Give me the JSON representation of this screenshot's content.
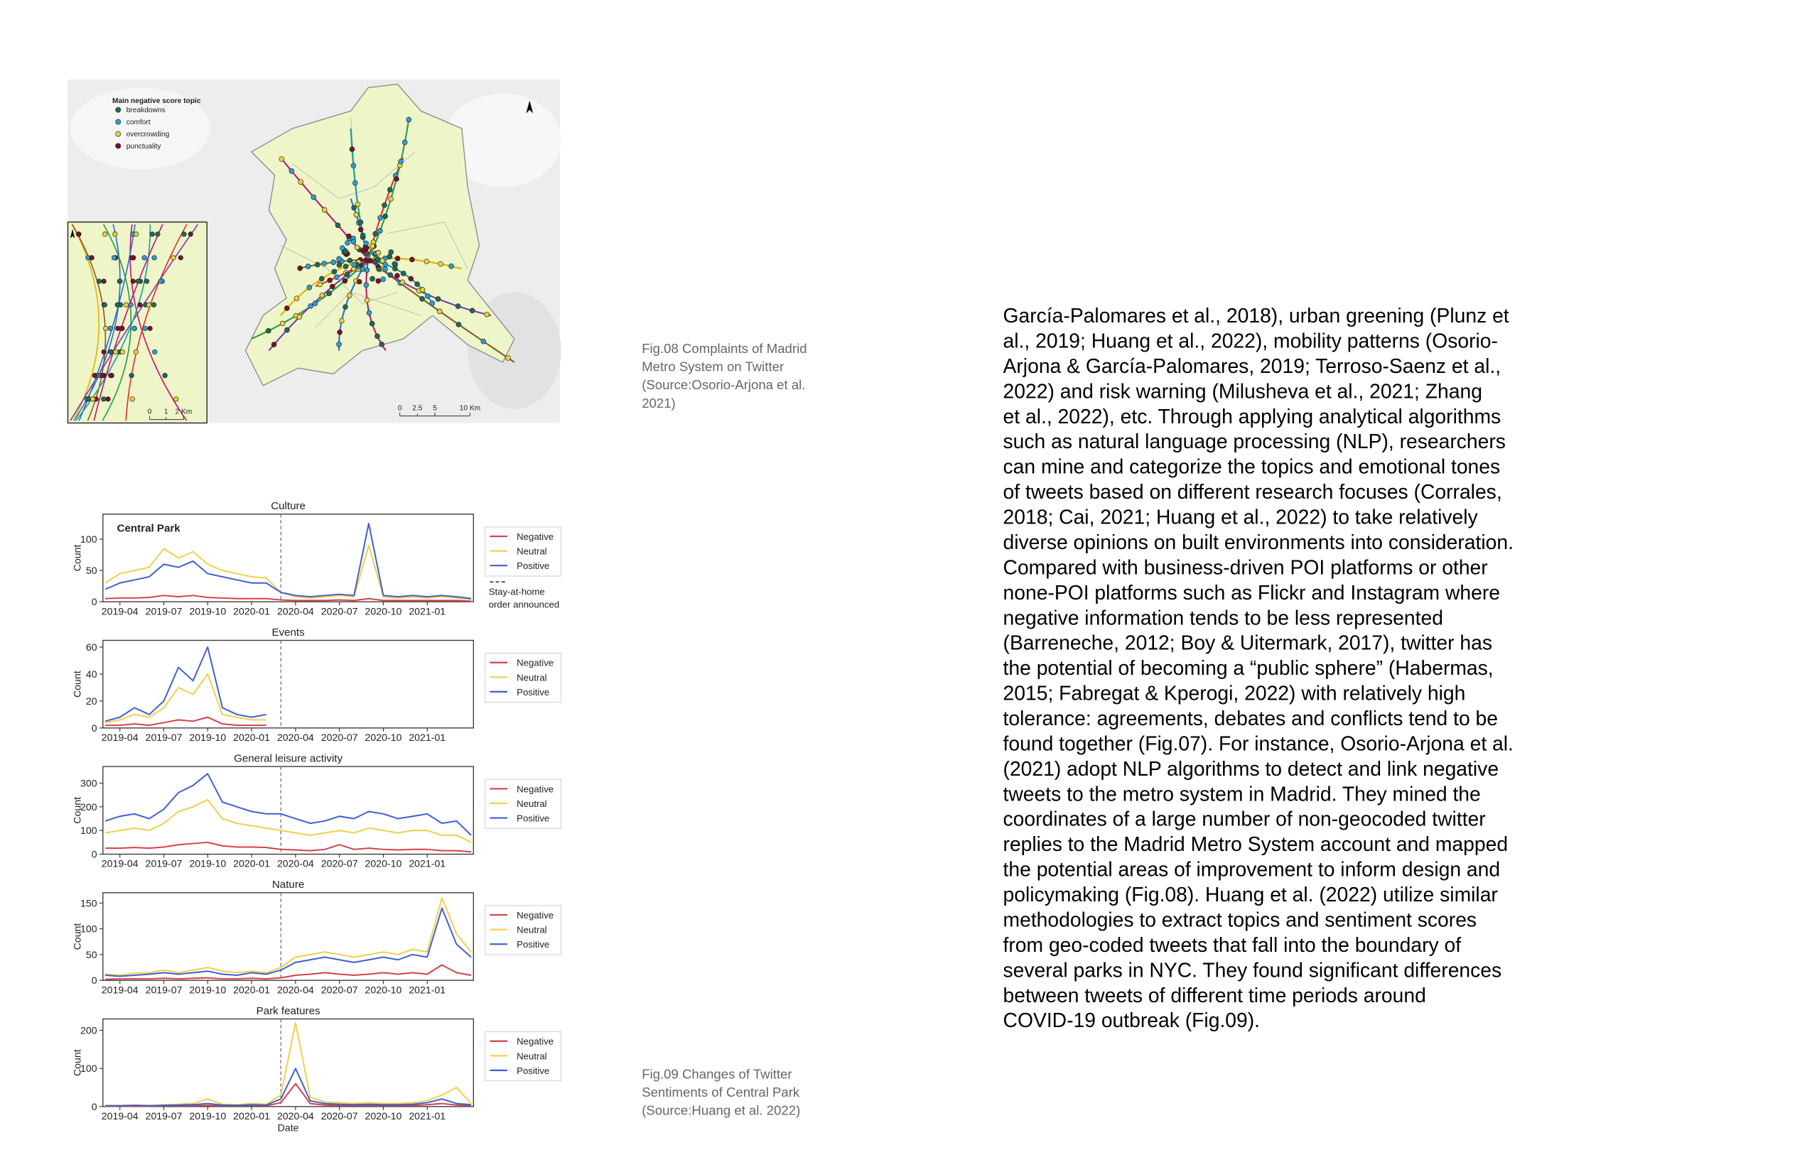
{
  "fig08": {
    "map": {
      "legend_title": "Main negative score topic",
      "legend": [
        "breakdowns",
        "comfort",
        "overcrowding",
        "punctuality"
      ],
      "legend_colors": [
        "#1d6b57",
        "#2b9fd6",
        "#e9d23a",
        "#7d1122"
      ],
      "scale_main": [
        "0",
        "2.5",
        "5",
        "10 Km"
      ],
      "scale_inset": [
        "0",
        "1",
        "2 Km"
      ]
    },
    "caption": [
      "Fig.08 Complaints of Madrid",
      "Metro System on Twitter",
      "(Source:Osorio-Arjona et al.",
      "2021)"
    ]
  },
  "chart_data": [
    {
      "type": "line",
      "title": "Culture",
      "ylabel": "Count",
      "note": "Central Park",
      "x": [
        "2019-03",
        "2019-04",
        "2019-05",
        "2019-06",
        "2019-07",
        "2019-08",
        "2019-09",
        "2019-10",
        "2019-11",
        "2019-12",
        "2020-01",
        "2020-02",
        "2020-03",
        "2020-04",
        "2020-05",
        "2020-06",
        "2020-07",
        "2020-08",
        "2020-09",
        "2020-10",
        "2020-11",
        "2020-12",
        "2021-01",
        "2021-02",
        "2021-03",
        "2021-04"
      ],
      "xticks": [
        "2019-04",
        "2019-07",
        "2019-10",
        "2020-01",
        "2020-04",
        "2020-07",
        "2020-10",
        "2021-01"
      ],
      "ylim": [
        0,
        140
      ],
      "yticks": [
        0,
        50,
        100
      ],
      "vline": "2020-03",
      "vline_label": [
        "Stay-at-home",
        "order announced"
      ],
      "series": [
        {
          "name": "Negative",
          "color": "#d6404a",
          "values": [
            5,
            6,
            6,
            7,
            10,
            8,
            10,
            7,
            6,
            5,
            5,
            5,
            3,
            2,
            2,
            2,
            3,
            2,
            5,
            2,
            2,
            2,
            2,
            2,
            2,
            1
          ]
        },
        {
          "name": "Neutral",
          "color": "#f2cf4a",
          "values": [
            30,
            45,
            50,
            55,
            85,
            70,
            80,
            60,
            50,
            45,
            40,
            38,
            15,
            8,
            6,
            8,
            10,
            8,
            90,
            8,
            6,
            8,
            6,
            8,
            6,
            4
          ]
        },
        {
          "name": "Positive",
          "color": "#3d5fd0",
          "values": [
            20,
            30,
            35,
            40,
            60,
            55,
            65,
            45,
            40,
            35,
            30,
            30,
            15,
            10,
            8,
            10,
            12,
            10,
            125,
            10,
            8,
            10,
            8,
            10,
            8,
            5
          ]
        }
      ]
    },
    {
      "type": "line",
      "title": "Events",
      "ylabel": "Count",
      "x": [
        "2019-03",
        "2019-04",
        "2019-05",
        "2019-06",
        "2019-07",
        "2019-08",
        "2019-09",
        "2019-10",
        "2019-11",
        "2019-12",
        "2020-01",
        "2020-02",
        "2020-03",
        "2020-04",
        "2020-05",
        "2020-06",
        "2020-07",
        "2020-08",
        "2020-09",
        "2020-10",
        "2020-11",
        "2020-12",
        "2021-01",
        "2021-02",
        "2021-03",
        "2021-04"
      ],
      "xticks": [
        "2019-04",
        "2019-07",
        "2019-10",
        "2020-01",
        "2020-04",
        "2020-07",
        "2020-10",
        "2021-01"
      ],
      "ylim": [
        0,
        65
      ],
      "yticks": [
        0,
        20,
        40,
        60
      ],
      "vline": "2020-03",
      "series": [
        {
          "name": "Negative",
          "color": "#d6404a",
          "values": [
            2,
            2,
            3,
            2,
            4,
            6,
            5,
            8,
            3,
            2,
            2,
            2,
            null,
            null,
            null,
            null,
            null,
            null,
            null,
            null,
            null,
            null,
            null,
            null,
            null,
            null
          ]
        },
        {
          "name": "Neutral",
          "color": "#f2cf4a",
          "values": [
            4,
            6,
            10,
            8,
            15,
            30,
            25,
            40,
            10,
            8,
            6,
            6,
            null,
            null,
            null,
            null,
            null,
            null,
            null,
            null,
            null,
            null,
            null,
            null,
            null,
            null
          ]
        },
        {
          "name": "Positive",
          "color": "#3d5fd0",
          "values": [
            5,
            8,
            15,
            10,
            20,
            45,
            35,
            60,
            15,
            10,
            8,
            10,
            null,
            null,
            null,
            null,
            null,
            null,
            null,
            null,
            null,
            null,
            null,
            null,
            null,
            null
          ]
        }
      ]
    },
    {
      "type": "line",
      "title": "General leisure activity",
      "ylabel": "Count",
      "x": [
        "2019-03",
        "2019-04",
        "2019-05",
        "2019-06",
        "2019-07",
        "2019-08",
        "2019-09",
        "2019-10",
        "2019-11",
        "2019-12",
        "2020-01",
        "2020-02",
        "2020-03",
        "2020-04",
        "2020-05",
        "2020-06",
        "2020-07",
        "2020-08",
        "2020-09",
        "2020-10",
        "2020-11",
        "2020-12",
        "2021-01",
        "2021-02",
        "2021-03",
        "2021-04"
      ],
      "xticks": [
        "2019-04",
        "2019-07",
        "2019-10",
        "2020-01",
        "2020-04",
        "2020-07",
        "2020-10",
        "2021-01"
      ],
      "ylim": [
        0,
        370
      ],
      "yticks": [
        0,
        100,
        200,
        300
      ],
      "vline": "2020-03",
      "series": [
        {
          "name": "Negative",
          "color": "#d6404a",
          "values": [
            25,
            25,
            28,
            25,
            30,
            40,
            45,
            50,
            35,
            30,
            30,
            28,
            20,
            18,
            15,
            20,
            40,
            20,
            25,
            20,
            18,
            20,
            20,
            15,
            15,
            10
          ]
        },
        {
          "name": "Neutral",
          "color": "#f2cf4a",
          "values": [
            90,
            100,
            110,
            100,
            130,
            180,
            200,
            230,
            150,
            130,
            120,
            110,
            100,
            90,
            80,
            90,
            100,
            90,
            110,
            100,
            90,
            100,
            100,
            80,
            80,
            50
          ]
        },
        {
          "name": "Positive",
          "color": "#3d5fd0",
          "values": [
            140,
            160,
            170,
            150,
            190,
            260,
            290,
            340,
            220,
            200,
            180,
            170,
            170,
            150,
            130,
            140,
            160,
            150,
            180,
            170,
            150,
            160,
            170,
            130,
            140,
            80
          ]
        }
      ]
    },
    {
      "type": "line",
      "title": "Nature",
      "ylabel": "Count",
      "x": [
        "2019-03",
        "2019-04",
        "2019-05",
        "2019-06",
        "2019-07",
        "2019-08",
        "2019-09",
        "2019-10",
        "2019-11",
        "2019-12",
        "2020-01",
        "2020-02",
        "2020-03",
        "2020-04",
        "2020-05",
        "2020-06",
        "2020-07",
        "2020-08",
        "2020-09",
        "2020-10",
        "2020-11",
        "2020-12",
        "2021-01",
        "2021-02",
        "2021-03",
        "2021-04"
      ],
      "xticks": [
        "2019-04",
        "2019-07",
        "2019-10",
        "2020-01",
        "2020-04",
        "2020-07",
        "2020-10",
        "2021-01"
      ],
      "ylim": [
        0,
        170
      ],
      "yticks": [
        0,
        50,
        100,
        150
      ],
      "vline": "2020-03",
      "series": [
        {
          "name": "Negative",
          "color": "#d6404a",
          "values": [
            2,
            3,
            3,
            3,
            4,
            3,
            4,
            5,
            3,
            3,
            4,
            3,
            5,
            10,
            12,
            15,
            12,
            10,
            12,
            15,
            12,
            15,
            12,
            30,
            15,
            10
          ]
        },
        {
          "name": "Neutral",
          "color": "#f2cf4a",
          "values": [
            12,
            10,
            14,
            15,
            20,
            15,
            20,
            25,
            18,
            15,
            18,
            15,
            25,
            45,
            50,
            55,
            50,
            45,
            50,
            55,
            50,
            60,
            55,
            160,
            90,
            55
          ]
        },
        {
          "name": "Positive",
          "color": "#3d5fd0",
          "values": [
            10,
            8,
            10,
            12,
            15,
            12,
            15,
            18,
            12,
            10,
            15,
            12,
            20,
            35,
            40,
            45,
            40,
            35,
            40,
            45,
            40,
            50,
            45,
            140,
            70,
            45
          ]
        }
      ]
    },
    {
      "type": "line",
      "title": "Park features",
      "ylabel": "Count",
      "xlabel": "Date",
      "x": [
        "2019-03",
        "2019-04",
        "2019-05",
        "2019-06",
        "2019-07",
        "2019-08",
        "2019-09",
        "2019-10",
        "2019-11",
        "2019-12",
        "2020-01",
        "2020-02",
        "2020-03",
        "2020-04",
        "2020-05",
        "2020-06",
        "2020-07",
        "2020-08",
        "2020-09",
        "2020-10",
        "2020-11",
        "2020-12",
        "2021-01",
        "2021-02",
        "2021-03",
        "2021-04"
      ],
      "xticks": [
        "2019-04",
        "2019-07",
        "2019-10",
        "2020-01",
        "2020-04",
        "2020-07",
        "2020-10",
        "2021-01"
      ],
      "ylim": [
        0,
        230
      ],
      "yticks": [
        0,
        100,
        200
      ],
      "vline": "2020-03",
      "series": [
        {
          "name": "Negative",
          "color": "#d6404a",
          "values": [
            1,
            1,
            1,
            1,
            2,
            2,
            2,
            3,
            2,
            2,
            3,
            2,
            10,
            60,
            8,
            4,
            3,
            3,
            3,
            3,
            3,
            3,
            5,
            8,
            4,
            3
          ]
        },
        {
          "name": "Neutral",
          "color": "#f2cf4a",
          "values": [
            3,
            3,
            4,
            3,
            5,
            6,
            8,
            20,
            6,
            5,
            8,
            6,
            30,
            220,
            25,
            12,
            10,
            8,
            10,
            8,
            8,
            10,
            15,
            30,
            50,
            8
          ]
        },
        {
          "name": "Positive",
          "color": "#3d5fd0",
          "values": [
            2,
            2,
            3,
            2,
            3,
            4,
            5,
            8,
            4,
            3,
            5,
            4,
            20,
            100,
            15,
            8,
            6,
            5,
            6,
            5,
            5,
            6,
            10,
            20,
            8,
            5
          ]
        }
      ]
    }
  ],
  "fig09": {
    "caption": [
      "Fig.09 Changes of Twitter",
      "Sentiments of Central Park",
      "(Source:Huang et al. 2022)"
    ]
  },
  "body": {
    "lines": [
      "García-Palomares et al., 2018), urban greening (Plunz et",
      "al., 2019; Huang et al., 2022), mobility patterns (Osorio-",
      "Arjona & García-Palomares, 2019; Terroso-Saenz et al.,",
      "2022) and risk warning (Milusheva et al., 2021; Zhang",
      "et al., 2022), etc. Through applying analytical algorithms",
      "such as natural language processing (NLP), researchers",
      "can mine and categorize the topics and emotional tones",
      "of tweets based on different research focuses (Corrales,",
      "2018; Cai, 2021; Huang et al., 2022) to take relatively",
      "diverse opinions on built environments into consideration.",
      "Compared with business-driven POI platforms or other",
      "none-POI platforms such as Flickr and Instagram where",
      "negative information tends to be less represented",
      "(Barreneche, 2012; Boy & Uitermark, 2017), twitter has",
      "the potential of becoming a “public sphere” (Habermas,",
      "2015; Fabregat & Kperogi, 2022) with relatively high",
      "tolerance: agreements, debates and conflicts tend to be",
      "found together (Fig.07). For instance, Osorio-Arjona et al.",
      "(2021) adopt NLP algorithms to detect and link negative",
      "tweets to the metro system in Madrid. They mined the",
      "coordinates of a large number of non-geocoded twitter",
      "replies to the Madrid Metro System account and mapped",
      "the potential areas of improvement to inform design and",
      "policymaking (Fig.08). Huang et al. (2022) utilize similar",
      "methodologies to extract topics and sentiment scores",
      "from geo-coded tweets that fall into the boundary of",
      "several parks in NYC. They found significant differences",
      "between tweets of different time periods around",
      "COVID-19 outbreak (Fig.09)."
    ]
  }
}
